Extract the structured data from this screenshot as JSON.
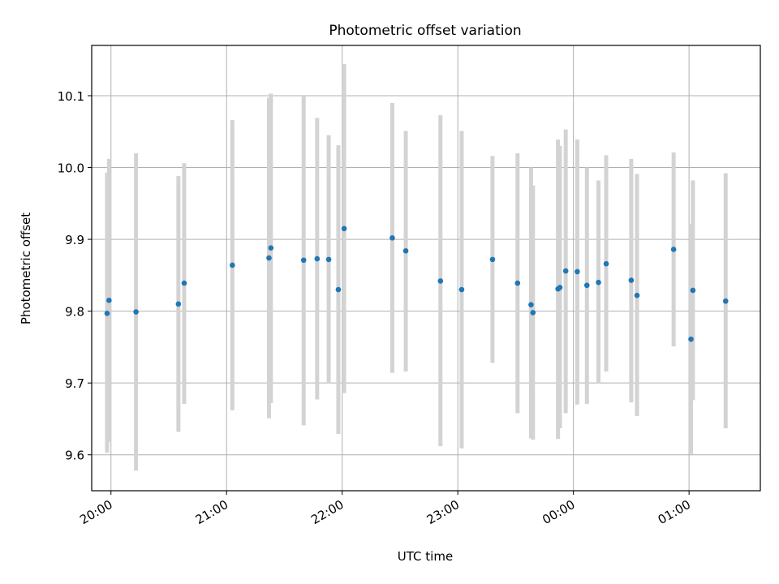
{
  "chart_data": {
    "type": "scatter",
    "title": "Photometric offset variation",
    "xlabel": "UTC time",
    "ylabel": "Photometric offset",
    "x_tick_labels": [
      "20:00",
      "21:00",
      "22:00",
      "23:00",
      "00:00",
      "01:00"
    ],
    "y_tick_labels": [
      "9.6",
      "9.7",
      "9.8",
      "9.9",
      "10.0",
      "10.1"
    ],
    "xlim": [
      "19:50",
      "25:37"
    ],
    "ylim": [
      9.55,
      10.17
    ],
    "grid": true,
    "colors": {
      "points": "#1f77b4",
      "error_bars": "#d3d3d3",
      "grid": "#b0b0b0"
    },
    "series": [
      {
        "points": [
          {
            "x": "19:58",
            "y": 9.797,
            "y_low": 9.603,
            "y_high": 9.993
          },
          {
            "x": "19:59",
            "y": 9.815,
            "y_low": 9.618,
            "y_high": 10.012
          },
          {
            "x": "20:13",
            "y": 9.799,
            "y_low": 9.578,
            "y_high": 10.02
          },
          {
            "x": "20:35",
            "y": 9.81,
            "y_low": 9.632,
            "y_high": 9.988
          },
          {
            "x": "20:38",
            "y": 9.839,
            "y_low": 9.671,
            "y_high": 10.006
          },
          {
            "x": "21:03",
            "y": 9.864,
            "y_low": 9.662,
            "y_high": 10.066
          },
          {
            "x": "21:22",
            "y": 9.874,
            "y_low": 9.651,
            "y_high": 10.097
          },
          {
            "x": "21:23",
            "y": 9.888,
            "y_low": 9.672,
            "y_high": 10.103
          },
          {
            "x": "21:40",
            "y": 9.871,
            "y_low": 9.641,
            "y_high": 10.101
          },
          {
            "x": "21:47",
            "y": 9.873,
            "y_low": 9.677,
            "y_high": 10.069
          },
          {
            "x": "21:53",
            "y": 9.872,
            "y_low": 9.7,
            "y_high": 10.045
          },
          {
            "x": "21:58",
            "y": 9.83,
            "y_low": 9.629,
            "y_high": 10.031
          },
          {
            "x": "22:01",
            "y": 9.915,
            "y_low": 9.686,
            "y_high": 10.144
          },
          {
            "x": "22:26",
            "y": 9.902,
            "y_low": 9.714,
            "y_high": 10.09
          },
          {
            "x": "22:33",
            "y": 9.884,
            "y_low": 9.716,
            "y_high": 10.051
          },
          {
            "x": "22:51",
            "y": 9.842,
            "y_low": 9.612,
            "y_high": 10.073
          },
          {
            "x": "23:02",
            "y": 9.83,
            "y_low": 9.609,
            "y_high": 10.051
          },
          {
            "x": "23:18",
            "y": 9.872,
            "y_low": 9.728,
            "y_high": 10.016
          },
          {
            "x": "23:31",
            "y": 9.839,
            "y_low": 9.658,
            "y_high": 10.02
          },
          {
            "x": "23:38",
            "y": 9.809,
            "y_low": 9.623,
            "y_high": 10.0
          },
          {
            "x": "23:39",
            "y": 9.798,
            "y_low": 9.621,
            "y_high": 9.975
          },
          {
            "x": "23:52",
            "y": 9.831,
            "y_low": 9.622,
            "y_high": 10.039
          },
          {
            "x": "23:53",
            "y": 9.833,
            "y_low": 9.637,
            "y_high": 10.03
          },
          {
            "x": "23:56",
            "y": 9.856,
            "y_low": 9.658,
            "y_high": 10.053
          },
          {
            "x": "24:02",
            "y": 9.855,
            "y_low": 9.67,
            "y_high": 10.039
          },
          {
            "x": "24:07",
            "y": 9.836,
            "y_low": 9.671,
            "y_high": 10.0
          },
          {
            "x": "24:13",
            "y": 9.84,
            "y_low": 9.7,
            "y_high": 9.982
          },
          {
            "x": "24:17",
            "y": 9.866,
            "y_low": 9.716,
            "y_high": 10.017
          },
          {
            "x": "24:30",
            "y": 9.843,
            "y_low": 9.673,
            "y_high": 10.012
          },
          {
            "x": "24:33",
            "y": 9.822,
            "y_low": 9.654,
            "y_high": 9.991
          },
          {
            "x": "24:52",
            "y": 9.886,
            "y_low": 9.751,
            "y_high": 10.021
          },
          {
            "x": "25:01",
            "y": 9.761,
            "y_low": 9.601,
            "y_high": 9.922
          },
          {
            "x": "25:02",
            "y": 9.829,
            "y_low": 9.676,
            "y_high": 9.982
          },
          {
            "x": "25:19",
            "y": 9.814,
            "y_low": 9.637,
            "y_high": 9.992
          }
        ]
      }
    ]
  }
}
